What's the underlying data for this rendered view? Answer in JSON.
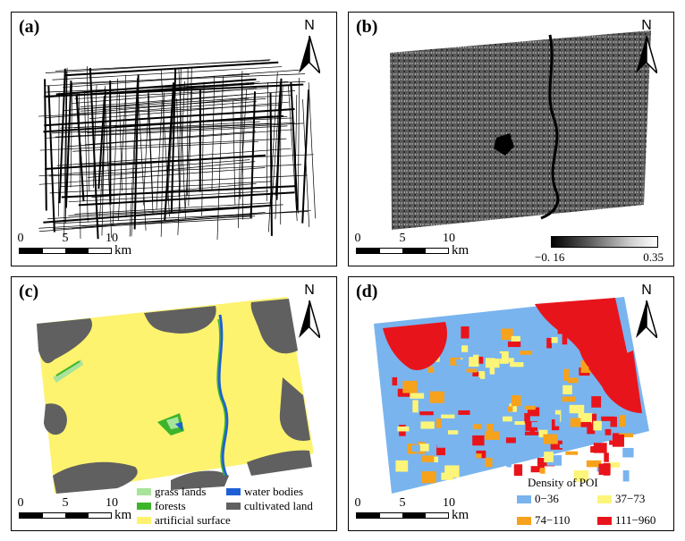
{
  "panels": {
    "a": {
      "label": "(a)"
    },
    "b": {
      "label": "(b)",
      "colorbar_min": "−0. 16",
      "colorbar_max": "0.35"
    },
    "c": {
      "label": "(c)",
      "legend": [
        {
          "label": "grass lands",
          "color": "#a8e39b"
        },
        {
          "label": "water bodies",
          "color": "#1f5fd6"
        },
        {
          "label": "forests",
          "color": "#3db52b"
        },
        {
          "label": "cultivated land",
          "color": "#606060"
        },
        {
          "label": "artificial surface",
          "color": "#fdf36e"
        }
      ]
    },
    "d": {
      "label": "(d)",
      "legend_title": "Density of POI",
      "legend": [
        {
          "label": "0−36",
          "color": "#79b4ee"
        },
        {
          "label": "37−73",
          "color": "#fdf57a"
        },
        {
          "label": "74−110",
          "color": "#f7a21c"
        },
        {
          "label": "111−960",
          "color": "#e8141b"
        }
      ]
    }
  },
  "north_label": "N",
  "scale": {
    "ticks": [
      "0",
      "5",
      "10"
    ],
    "unit": "km"
  }
}
